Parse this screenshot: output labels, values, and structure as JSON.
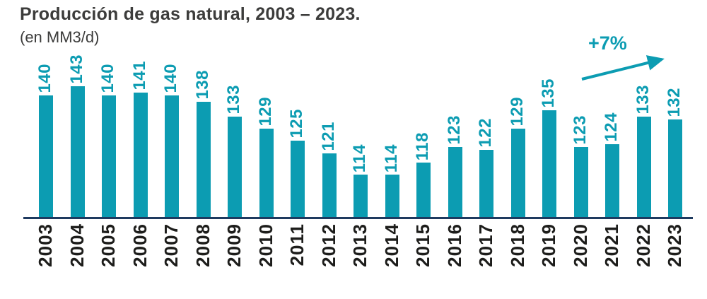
{
  "title": "Producción de gas natural, 2003 – 2023.",
  "subtitle": "(en MM3/d)",
  "annotation": {
    "label": "+7%"
  },
  "colors": {
    "accent": "#0c9cb2",
    "axis": "#1e3a5f",
    "ink": "#3c3c3b",
    "tick": "#1d1d1b"
  },
  "chart_data": {
    "type": "bar",
    "title": "Producción de gas natural, 2003 – 2023.",
    "subtitle": "(en MM3/d)",
    "xlabel": "",
    "ylabel": "MM3/d",
    "categories": [
      "2003",
      "2004",
      "2005",
      "2006",
      "2007",
      "2008",
      "2009",
      "2010",
      "2011",
      "2012",
      "2013",
      "2014",
      "2015",
      "2016",
      "2017",
      "2018",
      "2019",
      "2020",
      "2021",
      "2022",
      "2023"
    ],
    "values": [
      140,
      143,
      140,
      141,
      140,
      138,
      133,
      129,
      125,
      121,
      114,
      114,
      118,
      123,
      122,
      129,
      135,
      123,
      124,
      133,
      132
    ],
    "ylim": [
      100,
      145
    ],
    "grid": false,
    "legend": false,
    "value_labels": "rotated-90-above-bars",
    "bar_color": "#0c9cb2",
    "annotation": "+7%",
    "annotation_meaning": "growth arrow pointing up-right above 2020-2023 bars"
  }
}
